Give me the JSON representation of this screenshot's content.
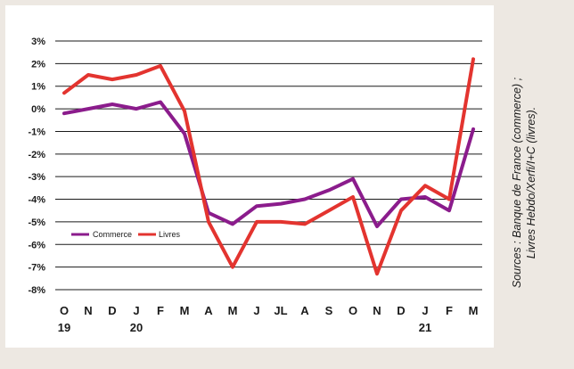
{
  "chart_data": {
    "type": "line",
    "categories": [
      "O",
      "N",
      "D",
      "J",
      "F",
      "M",
      "A",
      "M",
      "J",
      "JL",
      "A",
      "S",
      "O",
      "N",
      "D",
      "J",
      "F",
      "M"
    ],
    "year_labels": [
      {
        "index": 0,
        "label": "19"
      },
      {
        "index": 3,
        "label": "20"
      },
      {
        "index": 15,
        "label": "21"
      }
    ],
    "series": [
      {
        "name": "Commerce",
        "color": "#8b1c8c",
        "values": [
          -0.2,
          0.0,
          0.2,
          0.0,
          0.3,
          -1.1,
          -4.6,
          -5.1,
          -4.3,
          -4.2,
          -4.0,
          -3.6,
          -3.1,
          -5.2,
          -4.0,
          -3.9,
          -4.5,
          -0.9
        ]
      },
      {
        "name": "Livres",
        "color": "#e3342f",
        "values": [
          0.7,
          1.5,
          1.3,
          1.5,
          1.9,
          -0.1,
          -5.0,
          -7.0,
          -5.0,
          -5.0,
          -5.1,
          -4.5,
          -3.9,
          -7.3,
          -4.5,
          -3.4,
          -4.0,
          2.2
        ]
      }
    ],
    "ylim": [
      -8,
      3
    ],
    "yticks": [
      3,
      2,
      1,
      0,
      -1,
      -2,
      -3,
      -4,
      -5,
      -6,
      -7,
      -8
    ],
    "ytick_labels": [
      "3%",
      "2%",
      "1%",
      "0%",
      "-1%",
      "-2%",
      "-3%",
      "-4%",
      "-5%",
      "-6%",
      "-7%",
      "-8%"
    ],
    "grid": true,
    "legend_position": "lower-left"
  },
  "source": {
    "line1": "Sources : Banque de France (commerce) ;",
    "line2": "Livres Hebdo/Xerfi/I+C (livres)."
  },
  "colors": {
    "background": "#ede8e2",
    "panel": "#ffffff",
    "grid": "#1a1a1a"
  }
}
